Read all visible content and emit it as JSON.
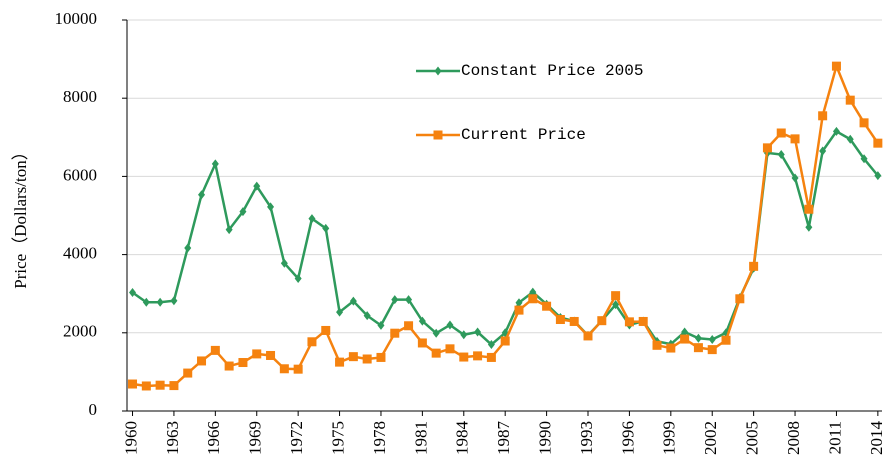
{
  "chart_data": {
    "type": "line",
    "ylabel": "Price（Dollars/ton）",
    "x": [
      1960,
      1961,
      1962,
      1963,
      1964,
      1965,
      1966,
      1967,
      1968,
      1969,
      1970,
      1971,
      1972,
      1973,
      1974,
      1975,
      1976,
      1977,
      1978,
      1979,
      1980,
      1981,
      1982,
      1983,
      1984,
      1985,
      1986,
      1987,
      1988,
      1989,
      1990,
      1991,
      1992,
      1993,
      1994,
      1995,
      1996,
      1997,
      1998,
      1999,
      2000,
      2001,
      2002,
      2003,
      2004,
      2005,
      2006,
      2007,
      2008,
      2009,
      2010,
      2011,
      2012,
      2013,
      2014
    ],
    "series": [
      {
        "name": "Constant Price 2005",
        "color": "#2e9a5c",
        "marker": "diamond",
        "values": [
          3030,
          2780,
          2780,
          2820,
          4170,
          5530,
          6320,
          4640,
          5100,
          5750,
          5220,
          3780,
          3390,
          4920,
          4670,
          2530,
          2810,
          2440,
          2190,
          2850,
          2850,
          2300,
          1990,
          2200,
          1950,
          2020,
          1700,
          2000,
          2770,
          3040,
          2730,
          2390,
          2300,
          1930,
          2310,
          2720,
          2200,
          2300,
          1780,
          1710,
          2020,
          1860,
          1830,
          2000,
          2900,
          3650,
          6600,
          6560,
          5960,
          4700,
          6650,
          7150,
          6950,
          6450,
          6020
        ]
      },
      {
        "name": "Current Price",
        "color": "#f5820f",
        "marker": "square",
        "values": [
          690,
          640,
          660,
          650,
          970,
          1280,
          1550,
          1150,
          1240,
          1460,
          1420,
          1080,
          1070,
          1770,
          2060,
          1250,
          1390,
          1330,
          1370,
          1990,
          2180,
          1740,
          1480,
          1590,
          1380,
          1410,
          1370,
          1790,
          2580,
          2870,
          2680,
          2340,
          2290,
          1920,
          2310,
          2950,
          2280,
          2290,
          1680,
          1610,
          1840,
          1620,
          1570,
          1810,
          2870,
          3700,
          6730,
          7110,
          6960,
          5160,
          7550,
          8820,
          7950,
          7370,
          6850
        ]
      }
    ],
    "xlim": [
      1959.6,
      2014.3
    ],
    "xticks": [
      1960,
      1963,
      1966,
      1969,
      1972,
      1975,
      1978,
      1981,
      1984,
      1987,
      1990,
      1993,
      1996,
      1999,
      2002,
      2005,
      2008,
      2011,
      2014
    ],
    "ylim": [
      0,
      10000
    ],
    "yticks": [
      0,
      2000,
      4000,
      6000,
      8000,
      10000
    ],
    "grid": true
  }
}
